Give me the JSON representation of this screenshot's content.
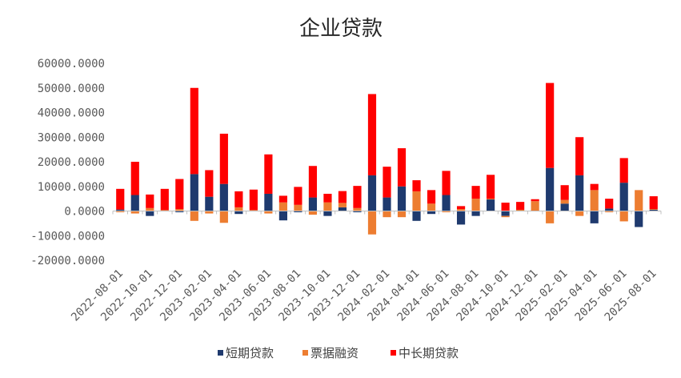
{
  "chart_data": {
    "type": "bar",
    "stacked": true,
    "title": "企业贷款",
    "xlabel": "",
    "ylabel": "",
    "ylim": [
      -20000,
      60000
    ],
    "yticks": [
      60000,
      50000,
      40000,
      30000,
      20000,
      10000,
      0,
      -10000,
      -20000
    ],
    "ytick_labels": [
      "60000.0000",
      "50000.0000",
      "40000.0000",
      "30000.0000",
      "20000.0000",
      "10000.0000",
      "0.0000",
      "-10000.0000",
      "-20000.0000"
    ],
    "grid": false,
    "legend_position": "bottom",
    "categories": [
      "2022-08-01",
      "2022-09-01",
      "2022-10-01",
      "2022-11-01",
      "2022-12-01",
      "2023-01-01",
      "2023-02-01",
      "2023-03-01",
      "2023-04-01",
      "2023-05-01",
      "2023-06-01",
      "2023-07-01",
      "2023-08-01",
      "2023-09-01",
      "2023-10-01",
      "2023-11-01",
      "2023-12-01",
      "2024-01-01",
      "2024-02-01",
      "2024-03-01",
      "2024-04-01",
      "2024-05-01",
      "2024-06-01",
      "2024-07-01",
      "2024-08-01",
      "2024-09-01",
      "2024-10-01",
      "2024-11-01",
      "2024-12-01",
      "2025-01-01",
      "2025-02-01",
      "2025-03-01",
      "2025-04-01",
      "2025-05-01",
      "2025-06-01",
      "2025-07-01",
      "2025-08-01"
    ],
    "x_tick_labels": [
      "2022-08-01",
      "2022-10-01",
      "2022-12-01",
      "2023-02-01",
      "2023-04-01",
      "2023-06-01",
      "2023-08-01",
      "2023-10-01",
      "2023-12-01",
      "2024-02-01",
      "2024-04-01",
      "2024-06-01",
      "2024-08-01",
      "2024-10-01",
      "2024-12-01",
      "2025-02-01",
      "2025-04-01",
      "2025-06-01",
      "2025-08-01"
    ],
    "series": [
      {
        "name": "短期贷款",
        "color": "#1f3a6e",
        "values": [
          600,
          6500,
          -2000,
          0,
          -500,
          15000,
          5800,
          11000,
          -1200,
          0,
          7000,
          -3800,
          -500,
          5500,
          -2000,
          1500,
          -500,
          14500,
          5500,
          10000,
          -4000,
          -1200,
          6500,
          -5500,
          -2000,
          4700,
          -2000,
          0,
          0,
          17500,
          3000,
          14500,
          -5000,
          1000,
          11500,
          -6500,
          500
        ]
      },
      {
        "name": "票据融资",
        "color": "#ed7d31",
        "values": [
          -500,
          -1000,
          1200,
          400,
          800,
          -4000,
          -1000,
          -4800,
          1500,
          400,
          -1000,
          3500,
          2500,
          -1500,
          3500,
          1800,
          1200,
          -9500,
          -2500,
          -2500,
          8000,
          3000,
          -500,
          800,
          5000,
          300,
          -500,
          500,
          4000,
          -5000,
          1500,
          -2000,
          8500,
          -500,
          -4200,
          8500,
          300
        ]
      },
      {
        "name": "中长期贷款",
        "color": "#ff0000",
        "values": [
          8400,
          13500,
          5500,
          8600,
          12200,
          35000,
          10800,
          20400,
          6500,
          8300,
          16000,
          2700,
          7300,
          12800,
          3500,
          4800,
          9000,
          33000,
          12500,
          15500,
          4500,
          5500,
          9800,
          1200,
          5200,
          9700,
          3400,
          3200,
          800,
          34500,
          6000,
          15500,
          2500,
          4000,
          10000,
          0,
          5200
        ]
      }
    ]
  }
}
